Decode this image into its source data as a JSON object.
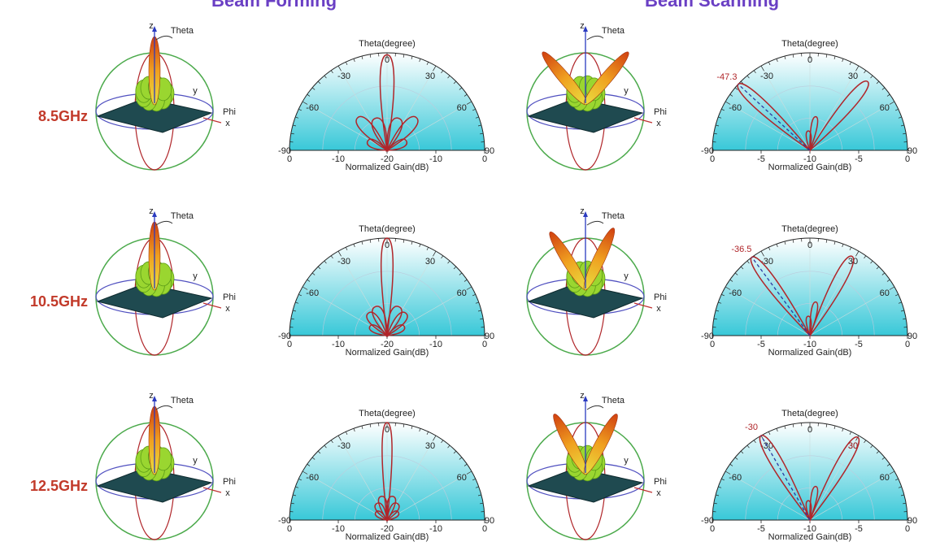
{
  "sections": {
    "beam_forming": "Beam Forming",
    "beam_scanning": "Beam Scanning"
  },
  "rows": [
    {
      "freq": "8.5GHz",
      "scan_label": "-47.3",
      "scan_right_label": "",
      "scan_angles": [
        -47.3,
        40
      ],
      "scan_deep": -47.3
    },
    {
      "freq": "10.5GHz",
      "scan_label": "-36.5",
      "scan_right_label": "",
      "scan_angles": [
        -36.5,
        28
      ],
      "scan_deep": -36.5
    },
    {
      "freq": "12.5GHz",
      "scan_label": "-30",
      "scan_right_label": "30",
      "scan_angles": [
        -30,
        30
      ],
      "scan_deep": -30
    }
  ],
  "polar_bf": {
    "title": "Theta(degree)",
    "xlabel": "Normalized Gain(dB)",
    "angle_ticks": [
      "-90",
      "-60",
      "-30",
      "0",
      "30",
      "60",
      "90"
    ],
    "gain_ticks": [
      "0",
      "-10",
      "-20",
      "-10",
      "0"
    ]
  },
  "polar_bs": {
    "title": "Theta(degree)",
    "xlabel": "Normalized Gain(dB)",
    "angle_ticks": [
      "-90",
      "-60",
      "-30",
      "0",
      "30",
      "60",
      "90"
    ],
    "gain_ticks": [
      "0",
      "-5",
      "-10",
      "-5",
      "0"
    ]
  },
  "pattern3d": {
    "axis_z": "z",
    "axis_y": "y",
    "axis_x": "x",
    "theta": "Theta",
    "phi": "Phi"
  },
  "colors": {
    "title": "#6a3fc4",
    "freq": "#c23a2a",
    "pattern": "#b0262a",
    "scan_dash": "#2a3aa0",
    "fill_top": "#ffffff",
    "fill_bottom": "#38c8d8"
  }
}
